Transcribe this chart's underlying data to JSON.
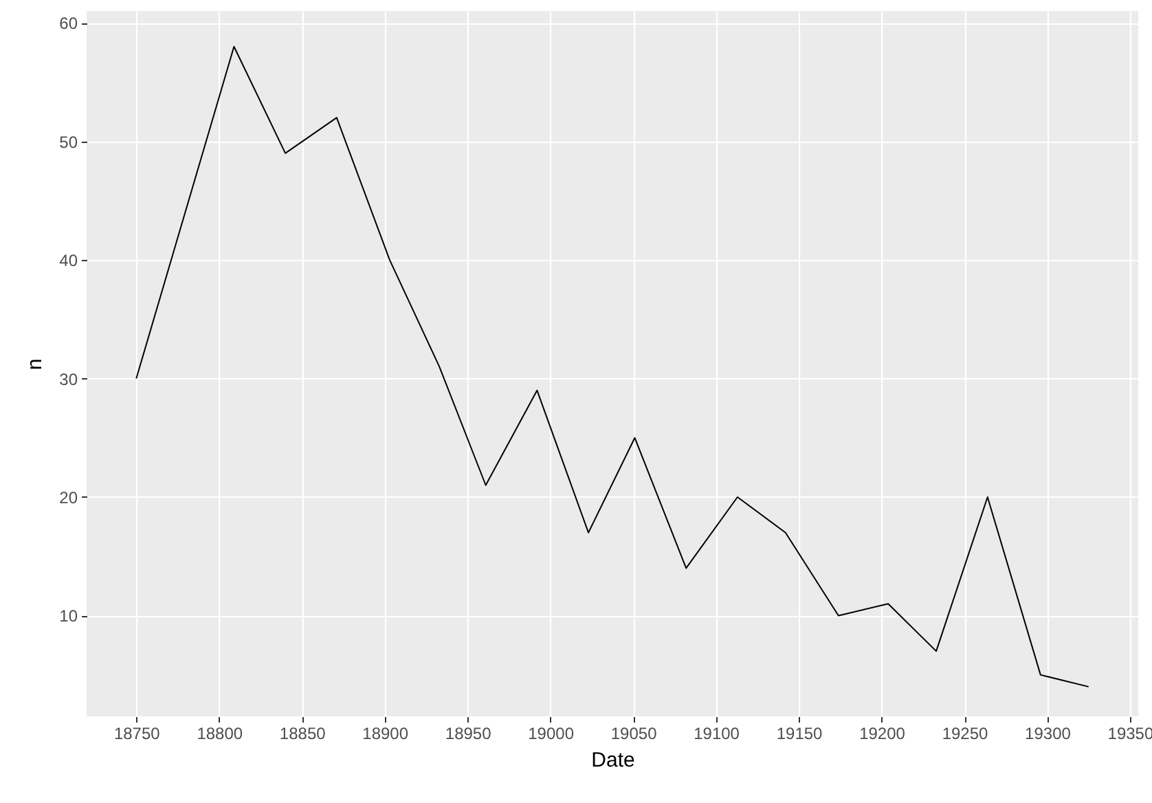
{
  "chart_data": {
    "type": "line",
    "xlabel": "Date",
    "ylabel": "n",
    "x": [
      18750,
      18809,
      18840,
      18871,
      18903,
      18933,
      18961,
      18992,
      19023,
      19051,
      19082,
      19113,
      19142,
      19174,
      19204,
      19233,
      19264,
      19296,
      19325
    ],
    "series": [
      {
        "color": "#000000",
        "values": [
          30,
          58,
          49,
          52,
          40,
          31,
          21,
          29,
          17,
          25,
          14,
          20,
          17,
          10,
          11,
          7,
          20,
          5,
          4
        ]
      }
    ],
    "xlim": [
      18720,
      19355
    ],
    "xticks": [
      18750,
      18800,
      18850,
      18900,
      18950,
      19000,
      19050,
      19100,
      19150,
      19200,
      19250,
      19300,
      19350
    ],
    "ylim": [
      1.5,
      61
    ],
    "yticks": [
      10,
      20,
      30,
      40,
      50,
      60
    ],
    "grid": true
  }
}
